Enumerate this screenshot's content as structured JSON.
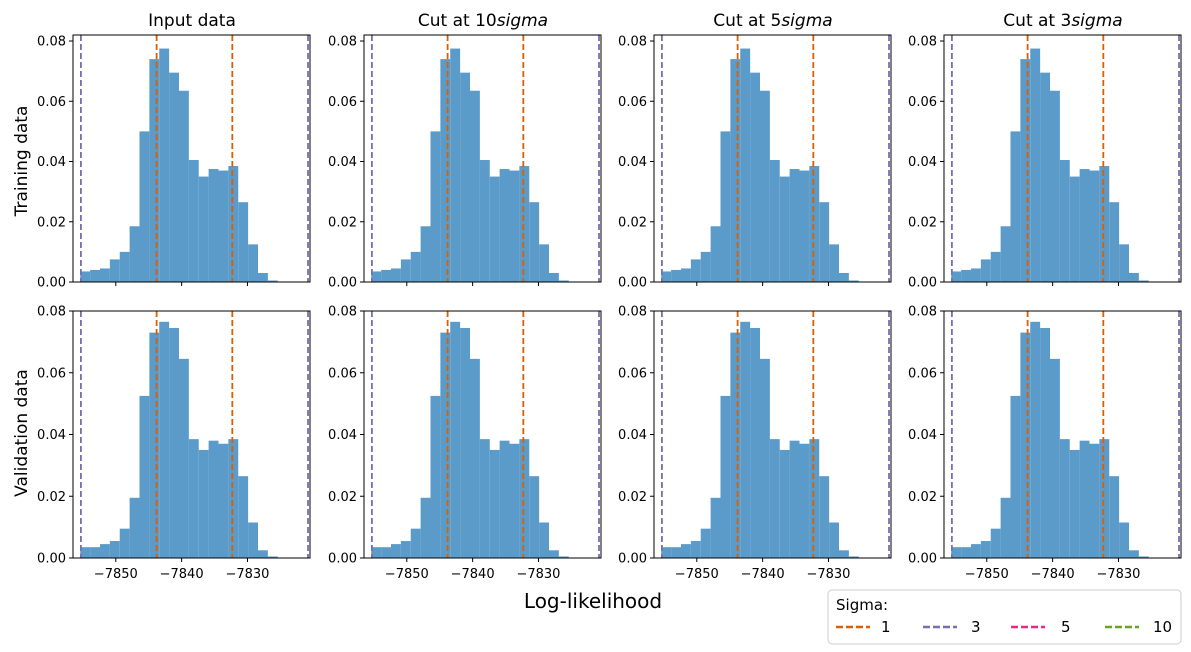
{
  "figure": {
    "xlabel": "Log-likelihood",
    "row_labels": [
      "Training data",
      "Validation data"
    ],
    "column_titles": [
      {
        "text": "Input data",
        "suffix": ""
      },
      {
        "text": "Cut at 10",
        "suffix": "sigma"
      },
      {
        "text": "Cut at 5",
        "suffix": "sigma"
      },
      {
        "text": "Cut at 3",
        "suffix": "sigma"
      }
    ],
    "legend": {
      "title": "Sigma:",
      "placement": "bottom-right",
      "entries": [
        {
          "label": "1",
          "color": "#d95f02"
        },
        {
          "label": "3",
          "color": "#7570b3"
        },
        {
          "label": "5",
          "color": "#e7298a"
        },
        {
          "label": "10",
          "color": "#66a61e"
        }
      ]
    },
    "colors": {
      "bars": "#5b9bc9",
      "sigma1": "#d95f02",
      "sigma3": "#7570b3"
    }
  },
  "chart_data": {
    "type": "bar",
    "grid": false,
    "xlim": [
      -7856.5,
      -7820.5
    ],
    "x_ticks": [
      -7850,
      -7840,
      -7830
    ],
    "x_tick_labels": [
      "−7850",
      "−7840",
      "−7830"
    ],
    "bin_edges": [
      -7855.4,
      -7853.9,
      -7852.4,
      -7850.9,
      -7849.4,
      -7847.9,
      -7846.4,
      -7844.9,
      -7843.4,
      -7841.9,
      -7840.4,
      -7838.9,
      -7837.4,
      -7835.9,
      -7834.4,
      -7832.9,
      -7831.4,
      -7829.9,
      -7828.4,
      -7826.9,
      -7825.4,
      -7823.9,
      -7822.4
    ],
    "rows": [
      {
        "name": "Training data",
        "ylim": [
          0,
          0.082
        ],
        "y_ticks": [
          0,
          0.02,
          0.04,
          0.06,
          0.08
        ],
        "y_tick_labels": [
          "0.00",
          "0.02",
          "0.04",
          "0.06",
          "0.08"
        ],
        "densities": [
          0.0035,
          0.004,
          0.0045,
          0.0075,
          0.01,
          0.0185,
          0.05,
          0.074,
          0.0775,
          0.0695,
          0.0635,
          0.0405,
          0.035,
          0.0375,
          0.037,
          0.0385,
          0.0265,
          0.0125,
          0.003,
          0.0005,
          0.0,
          0.0
        ]
      },
      {
        "name": "Validation data",
        "ylim": [
          0,
          0.08
        ],
        "y_ticks": [
          0,
          0.02,
          0.04,
          0.06,
          0.08
        ],
        "y_tick_labels": [
          "0.00",
          "0.02",
          "0.04",
          "0.06",
          "0.08"
        ],
        "densities": [
          0.0035,
          0.0035,
          0.0045,
          0.0055,
          0.0095,
          0.0195,
          0.0525,
          0.073,
          0.0765,
          0.0745,
          0.0645,
          0.0385,
          0.035,
          0.038,
          0.037,
          0.0385,
          0.0265,
          0.0115,
          0.0025,
          0.0005,
          0.0,
          0.0
        ]
      }
    ],
    "sigma_lines": [
      {
        "sigma": "1",
        "x": [
          -7843.8,
          -7832.3
        ]
      },
      {
        "sigma": "3",
        "x": [
          -7855.3,
          -7820.8
        ]
      }
    ]
  }
}
